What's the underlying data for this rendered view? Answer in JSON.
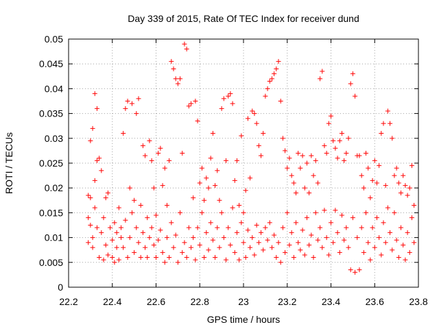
{
  "chart_data": {
    "type": "scatter",
    "title": "Day 339 of 2015, Rate Of TEC Index for receiver dund",
    "xlabel": "GPS time / hours",
    "ylabel": "ROTI / TECUs",
    "xlim": [
      22.2,
      23.8
    ],
    "ylim": [
      0,
      0.05
    ],
    "xticks": [
      "22.2",
      "22.4",
      "22.6",
      "22.8",
      "23",
      "23.2",
      "23.4",
      "23.6",
      "23.8"
    ],
    "yticks": [
      "0",
      "0.005",
      "0.01",
      "0.015",
      "0.02",
      "0.025",
      "0.03",
      "0.035",
      "0.04",
      "0.045",
      "0.05"
    ],
    "grid": true,
    "marker": "plus",
    "color": "#ff0000",
    "series": [
      {
        "name": "ROTI",
        "points": [
          [
            22.29,
            0.0185
          ],
          [
            22.29,
            0.014
          ],
          [
            22.29,
            0.009
          ],
          [
            22.3,
            0.0295
          ],
          [
            22.3,
            0.018
          ],
          [
            22.3,
            0.0125
          ],
          [
            22.31,
            0.008
          ],
          [
            22.31,
            0.01
          ],
          [
            22.31,
            0.032
          ],
          [
            22.32,
            0.039
          ],
          [
            22.32,
            0.0215
          ],
          [
            22.32,
            0.016
          ],
          [
            22.33,
            0.0255
          ],
          [
            22.33,
            0.036
          ],
          [
            22.33,
            0.012
          ],
          [
            22.34,
            0.006
          ],
          [
            22.34,
            0.026
          ],
          [
            22.35,
            0.0235
          ],
          [
            22.35,
            0.011
          ],
          [
            22.36,
            0.0055
          ],
          [
            22.36,
            0.014
          ],
          [
            22.37,
            0.0085
          ],
          [
            22.37,
            0.018
          ],
          [
            22.38,
            0.0065
          ],
          [
            22.38,
            0.019
          ],
          [
            22.39,
            0.012
          ],
          [
            22.4,
            0.006
          ],
          [
            22.4,
            0.0095
          ],
          [
            22.41,
            0.013
          ],
          [
            22.41,
            0.005
          ],
          [
            22.42,
            0.008
          ],
          [
            22.42,
            0.011
          ],
          [
            22.43,
            0.016
          ],
          [
            22.43,
            0.0055
          ],
          [
            22.44,
            0.01
          ],
          [
            22.44,
            0.012
          ],
          [
            22.45,
            0.031
          ],
          [
            22.45,
            0.008
          ],
          [
            22.46,
            0.036
          ],
          [
            22.46,
            0.0135
          ],
          [
            22.47,
            0.0375
          ],
          [
            22.47,
            0.006
          ],
          [
            22.48,
            0.02
          ],
          [
            22.48,
            0.01
          ],
          [
            22.49,
            0.037
          ],
          [
            22.49,
            0.015
          ],
          [
            22.5,
            0.0175
          ],
          [
            22.5,
            0.007
          ],
          [
            22.51,
            0.035
          ],
          [
            22.51,
            0.012
          ],
          [
            22.52,
            0.038
          ],
          [
            22.52,
            0.009
          ],
          [
            22.53,
            0.0165
          ],
          [
            22.53,
            0.006
          ],
          [
            22.54,
            0.0285
          ],
          [
            22.54,
            0.011
          ],
          [
            22.55,
            0.0265
          ],
          [
            22.55,
            0.008
          ],
          [
            22.56,
            0.014
          ],
          [
            22.56,
            0.006
          ],
          [
            22.57,
            0.0295
          ],
          [
            22.57,
            0.01
          ],
          [
            22.58,
            0.0255
          ],
          [
            22.58,
            0.012
          ],
          [
            22.59,
            0.02
          ],
          [
            22.59,
            0.0085
          ],
          [
            22.6,
            0.0145
          ],
          [
            22.6,
            0.006
          ],
          [
            22.61,
            0.027
          ],
          [
            22.61,
            0.0095
          ],
          [
            22.62,
            0.028
          ],
          [
            22.62,
            0.0115
          ],
          [
            22.63,
            0.0205
          ],
          [
            22.63,
            0.007
          ],
          [
            22.64,
            0.024
          ],
          [
            22.64,
            0.005
          ],
          [
            22.65,
            0.0165
          ],
          [
            22.65,
            0.01
          ],
          [
            22.66,
            0.0255
          ],
          [
            22.66,
            0.006
          ],
          [
            22.67,
            0.0455
          ],
          [
            22.67,
            0.013
          ],
          [
            22.68,
            0.044
          ],
          [
            22.68,
            0.008
          ],
          [
            22.69,
            0.042
          ],
          [
            22.69,
            0.0105
          ],
          [
            22.7,
            0.041
          ],
          [
            22.7,
            0.005
          ],
          [
            22.71,
            0.042
          ],
          [
            22.71,
            0.015
          ],
          [
            22.72,
            0.027
          ],
          [
            22.72,
            0.007
          ],
          [
            22.73,
            0.049
          ],
          [
            22.73,
            0.009
          ],
          [
            22.74,
            0.048
          ],
          [
            22.74,
            0.006
          ],
          [
            22.75,
            0.0365
          ],
          [
            22.75,
            0.012
          ],
          [
            22.76,
            0.037
          ],
          [
            22.76,
            0.008
          ],
          [
            22.77,
            0.018
          ],
          [
            22.77,
            0.01
          ],
          [
            22.78,
            0.0375
          ],
          [
            22.78,
            0.0055
          ],
          [
            22.79,
            0.0335
          ],
          [
            22.79,
            0.012
          ],
          [
            22.8,
            0.021
          ],
          [
            22.8,
            0.0085
          ],
          [
            22.81,
            0.024
          ],
          [
            22.81,
            0.015
          ],
          [
            22.82,
            0.0175
          ],
          [
            22.82,
            0.006
          ],
          [
            22.83,
            0.022
          ],
          [
            22.83,
            0.011
          ],
          [
            22.84,
            0.02
          ],
          [
            22.84,
            0.0075
          ],
          [
            22.85,
            0.026
          ],
          [
            22.85,
            0.013
          ],
          [
            22.86,
            0.031
          ],
          [
            22.86,
            0.0095
          ],
          [
            22.87,
            0.0205
          ],
          [
            22.87,
            0.006
          ],
          [
            22.88,
            0.0235
          ],
          [
            22.88,
            0.012
          ],
          [
            22.89,
            0.0175
          ],
          [
            22.89,
            0.008
          ],
          [
            22.9,
            0.036
          ],
          [
            22.9,
            0.015
          ],
          [
            22.91,
            0.038
          ],
          [
            22.91,
            0.01
          ],
          [
            22.92,
            0.0255
          ],
          [
            22.92,
            0.0055
          ],
          [
            22.93,
            0.0385
          ],
          [
            22.93,
            0.012
          ],
          [
            22.94,
            0.039
          ],
          [
            22.94,
            0.0085
          ],
          [
            22.95,
            0.037
          ],
          [
            22.95,
            0.016
          ],
          [
            22.96,
            0.0215
          ],
          [
            22.96,
            0.007
          ],
          [
            22.97,
            0.0255
          ],
          [
            22.97,
            0.011
          ],
          [
            22.98,
            0.0165
          ],
          [
            22.98,
            0.0055
          ],
          [
            22.99,
            0.0305
          ],
          [
            22.99,
            0.013
          ],
          [
            23.0,
            0.015
          ],
          [
            23.0,
            0.009
          ],
          [
            23.01,
            0.0195
          ],
          [
            23.01,
            0.006
          ],
          [
            23.02,
            0.034
          ],
          [
            23.02,
            0.0115
          ],
          [
            23.03,
            0.022
          ],
          [
            23.03,
            0.008
          ],
          [
            23.04,
            0.0355
          ],
          [
            23.04,
            0.01
          ],
          [
            23.05,
            0.035
          ],
          [
            23.05,
            0.0065
          ],
          [
            23.06,
            0.033
          ],
          [
            23.06,
            0.0125
          ],
          [
            23.07,
            0.0285
          ],
          [
            23.07,
            0.009
          ],
          [
            23.08,
            0.0265
          ],
          [
            23.08,
            0.011
          ],
          [
            23.09,
            0.031
          ],
          [
            23.09,
            0.0075
          ],
          [
            23.1,
            0.0385
          ],
          [
            23.1,
            0.012
          ],
          [
            23.11,
            0.04
          ],
          [
            23.11,
            0.0095
          ],
          [
            23.12,
            0.0415
          ],
          [
            23.12,
            0.013
          ],
          [
            23.13,
            0.042
          ],
          [
            23.13,
            0.008
          ],
          [
            23.14,
            0.043
          ],
          [
            23.14,
            0.0105
          ],
          [
            23.15,
            0.044
          ],
          [
            23.15,
            0.006
          ],
          [
            23.16,
            0.0455
          ],
          [
            23.16,
            0.009
          ],
          [
            23.17,
            0.0375
          ],
          [
            23.17,
            0.005
          ],
          [
            23.18,
            0.03
          ],
          [
            23.18,
            0.012
          ],
          [
            23.19,
            0.0275
          ],
          [
            23.19,
            0.007
          ],
          [
            23.2,
            0.024
          ],
          [
            23.2,
            0.015
          ],
          [
            23.21,
            0.026
          ],
          [
            23.21,
            0.0085
          ],
          [
            23.22,
            0.0225
          ],
          [
            23.22,
            0.011
          ],
          [
            23.23,
            0.021
          ],
          [
            23.23,
            0.006
          ],
          [
            23.24,
            0.019
          ],
          [
            23.24,
            0.013
          ],
          [
            23.25,
            0.027
          ],
          [
            23.25,
            0.009
          ],
          [
            23.26,
            0.024
          ],
          [
            23.26,
            0.0075
          ],
          [
            23.27,
            0.0265
          ],
          [
            23.27,
            0.0115
          ],
          [
            23.28,
            0.02
          ],
          [
            23.28,
            0.0065
          ],
          [
            23.29,
            0.025
          ],
          [
            23.29,
            0.014
          ],
          [
            23.3,
            0.019
          ],
          [
            23.3,
            0.0085
          ],
          [
            23.31,
            0.0265
          ],
          [
            23.31,
            0.0105
          ],
          [
            23.32,
            0.0225
          ],
          [
            23.32,
            0.006
          ],
          [
            23.33,
            0.0255
          ],
          [
            23.33,
            0.015
          ],
          [
            23.34,
            0.021
          ],
          [
            23.34,
            0.0095
          ],
          [
            23.35,
            0.042
          ],
          [
            23.35,
            0.012
          ],
          [
            23.36,
            0.0435
          ],
          [
            23.36,
            0.008
          ],
          [
            23.37,
            0.0285
          ],
          [
            23.37,
            0.0155
          ],
          [
            23.38,
            0.027
          ],
          [
            23.38,
            0.01
          ],
          [
            23.39,
            0.033
          ],
          [
            23.39,
            0.0065
          ],
          [
            23.4,
            0.0345
          ],
          [
            23.4,
            0.013
          ],
          [
            23.41,
            0.0295
          ],
          [
            23.41,
            0.009
          ],
          [
            23.42,
            0.028
          ],
          [
            23.42,
            0.0155
          ],
          [
            23.43,
            0.026
          ],
          [
            23.43,
            0.011
          ],
          [
            23.44,
            0.0295
          ],
          [
            23.44,
            0.007
          ],
          [
            23.45,
            0.031
          ],
          [
            23.45,
            0.0145
          ],
          [
            23.46,
            0.0255
          ],
          [
            23.46,
            0.0095
          ],
          [
            23.47,
            0.027
          ],
          [
            23.47,
            0.012
          ],
          [
            23.48,
            0.03
          ],
          [
            23.48,
            0.008
          ],
          [
            23.49,
            0.041
          ],
          [
            23.49,
            0.0035
          ],
          [
            23.5,
            0.043
          ],
          [
            23.5,
            0.014
          ],
          [
            23.51,
            0.0385
          ],
          [
            23.51,
            0.003
          ],
          [
            23.52,
            0.0265
          ],
          [
            23.52,
            0.01
          ],
          [
            23.53,
            0.0265
          ],
          [
            23.53,
            0.0035
          ],
          [
            23.54,
            0.0225
          ],
          [
            23.54,
            0.012
          ],
          [
            23.55,
            0.02
          ],
          [
            23.55,
            0.007
          ],
          [
            23.56,
            0.027
          ],
          [
            23.56,
            0.015
          ],
          [
            23.57,
            0.024
          ],
          [
            23.57,
            0.009
          ],
          [
            23.58,
            0.018
          ],
          [
            23.58,
            0.0055
          ],
          [
            23.59,
            0.0215
          ],
          [
            23.59,
            0.012
          ],
          [
            23.6,
            0.0255
          ],
          [
            23.6,
            0.008
          ],
          [
            23.61,
            0.021
          ],
          [
            23.61,
            0.014
          ],
          [
            23.62,
            0.0245
          ],
          [
            23.62,
            0.01
          ],
          [
            23.63,
            0.031
          ],
          [
            23.63,
            0.0065
          ],
          [
            23.64,
            0.033
          ],
          [
            23.64,
            0.013
          ],
          [
            23.65,
            0.0205
          ],
          [
            23.65,
            0.009
          ],
          [
            23.66,
            0.0355
          ],
          [
            23.66,
            0.016
          ],
          [
            23.67,
            0.033
          ],
          [
            23.67,
            0.011
          ],
          [
            23.68,
            0.03
          ],
          [
            23.68,
            0.0075
          ],
          [
            23.69,
            0.0225
          ],
          [
            23.69,
            0.015
          ],
          [
            23.7,
            0.024
          ],
          [
            23.7,
            0.0095
          ],
          [
            23.71,
            0.021
          ],
          [
            23.71,
            0.006
          ],
          [
            23.72,
            0.019
          ],
          [
            23.72,
            0.012
          ],
          [
            23.73,
            0.0225
          ],
          [
            23.73,
            0.0085
          ],
          [
            23.74,
            0.0205
          ],
          [
            23.74,
            0.0055
          ],
          [
            23.75,
            0.0185
          ],
          [
            23.75,
            0.011
          ],
          [
            23.76,
            0.02
          ],
          [
            23.76,
            0.007
          ],
          [
            23.77,
            0.0245
          ],
          [
            23.77,
            0.014
          ],
          [
            23.78,
            0.0165
          ],
          [
            23.78,
            0.009
          ]
        ]
      }
    ]
  }
}
